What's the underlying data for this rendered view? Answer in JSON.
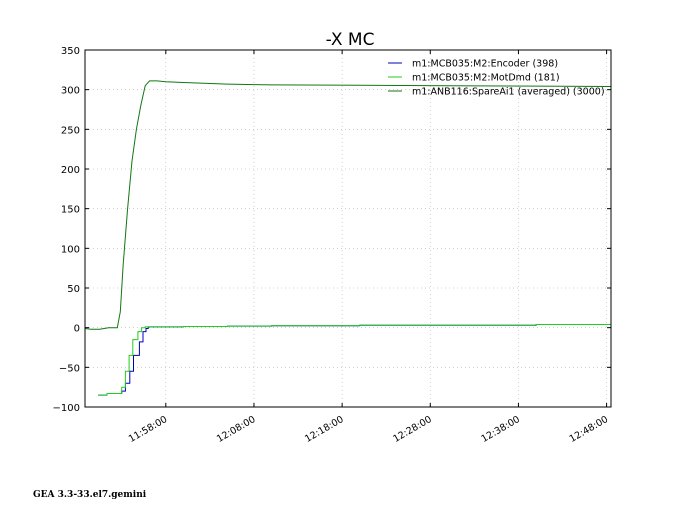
{
  "footer": "GEA 3.3-33.el7.gemini",
  "chart_data": {
    "type": "line",
    "title": "-X MC",
    "xlabel": "",
    "ylabel": "",
    "ylim": [
      -100,
      350
    ],
    "xlim": [
      "11:48:50",
      "12:48:30"
    ],
    "yticks": [
      -100,
      -50,
      0,
      50,
      100,
      150,
      200,
      250,
      300,
      350
    ],
    "xticks": [
      "11:58:00",
      "12:08:00",
      "12:18:00",
      "12:28:00",
      "12:38:00",
      "12:48:00"
    ],
    "grid": true,
    "legend_position": "top-right",
    "series": [
      {
        "name": "m1:MCB035:M2:Encoder (398)",
        "color": "#0000bb",
        "step": true,
        "x": [
          "11:50:20",
          "11:51:20",
          "11:52:30",
          "11:53:00",
          "11:53:25",
          "11:53:55",
          "11:54:20",
          "11:55:00",
          "11:55:25",
          "11:55:45",
          "11:56:00",
          "11:56:30",
          "12:00:00",
          "12:05:00",
          "12:10:00",
          "12:20:00",
          "12:30:00",
          "12:40:00",
          "12:48:30"
        ],
        "y": [
          -85,
          -83,
          -83,
          -80,
          -70,
          -55,
          -35,
          -18,
          -5,
          -1,
          1,
          1,
          1.5,
          2,
          2.5,
          3,
          3,
          4,
          4
        ]
      },
      {
        "name": "m1:MCB035:M2:MotDmd (181)",
        "color": "#22cc22",
        "step": true,
        "x": [
          "11:50:20",
          "11:51:20",
          "11:52:30",
          "11:53:00",
          "11:53:25",
          "11:53:50",
          "11:54:15",
          "11:54:50",
          "11:55:15",
          "11:55:40",
          "11:56:00",
          "11:56:30",
          "12:00:00",
          "12:05:00",
          "12:10:00",
          "12:20:00",
          "12:30:00",
          "12:40:00",
          "12:48:30"
        ],
        "y": [
          -85,
          -83,
          -83,
          -75,
          -55,
          -35,
          -15,
          -5,
          0,
          1,
          1,
          1,
          1.5,
          2,
          2.5,
          3,
          3,
          4,
          4
        ]
      },
      {
        "name": "m1:ANB116:SpareAi1 (averaged) (3000)",
        "color": "#117711",
        "step": false,
        "x": [
          "11:48:50",
          "11:49:30",
          "11:50:30",
          "11:51:30",
          "11:52:30",
          "11:52:50",
          "11:53:10",
          "11:53:40",
          "11:54:10",
          "11:54:40",
          "11:55:10",
          "11:55:40",
          "11:56:10",
          "11:56:30",
          "11:57:00",
          "11:58:00",
          "12:00:00",
          "12:05:00",
          "12:10:00",
          "12:20:00",
          "12:30:00",
          "12:40:00",
          "12:48:30"
        ],
        "y": [
          -1,
          -2,
          -2,
          0,
          0,
          20,
          80,
          150,
          210,
          250,
          280,
          305,
          311,
          311,
          311,
          310,
          309,
          307,
          306,
          305.5,
          305,
          304.5,
          304
        ]
      }
    ]
  }
}
